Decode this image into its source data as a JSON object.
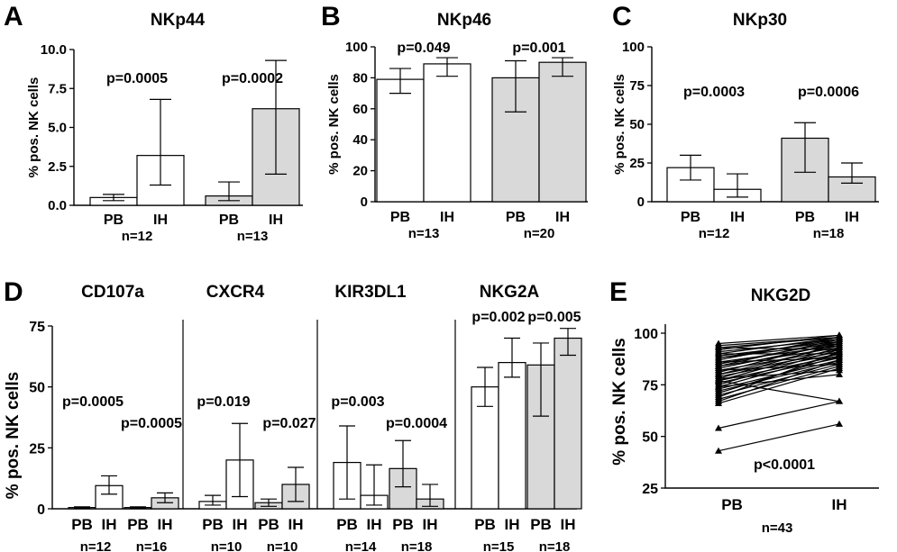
{
  "colors": {
    "white_bar": "#ffffff",
    "grey_bar": "#d9d9d9",
    "ink": "#000000"
  },
  "chart_data": [
    {
      "panel": "A",
      "type": "bar",
      "title": "NKp44",
      "ylabel": "% pos. NK cells",
      "ylim": [
        0,
        10
      ],
      "yticks": [
        "0.0",
        "2.5",
        "5.0",
        "7.5",
        "10.0"
      ],
      "ytick_values": [
        0,
        2.5,
        5,
        7.5,
        10
      ],
      "groups": [
        {
          "n": "n=12",
          "p": "p=0.0005",
          "fill": "white",
          "bars": [
            {
              "label": "PB",
              "value": 0.5,
              "err": [
                0.3,
                0.7
              ]
            },
            {
              "label": "IH",
              "value": 3.2,
              "err": [
                1.3,
                6.8
              ]
            }
          ]
        },
        {
          "n": "n=13",
          "p": "p=0.0002",
          "fill": "grey",
          "bars": [
            {
              "label": "PB",
              "value": 0.6,
              "err": [
                0.3,
                1.5
              ]
            },
            {
              "label": "IH",
              "value": 6.2,
              "err": [
                2.0,
                9.3
              ]
            }
          ]
        }
      ]
    },
    {
      "panel": "B",
      "type": "bar",
      "title": "NKp46",
      "ylabel": "% pos. NK cells",
      "ylim": [
        0,
        100
      ],
      "yticks": [
        "0",
        "20",
        "40",
        "60",
        "80",
        "100"
      ],
      "ytick_values": [
        0,
        20,
        40,
        60,
        80,
        100
      ],
      "groups": [
        {
          "n": "n=13",
          "p": "p=0.049",
          "fill": "white",
          "bars": [
            {
              "label": "PB",
              "value": 79,
              "err": [
                70,
                86
              ]
            },
            {
              "label": "IH",
              "value": 89,
              "err": [
                81,
                93
              ]
            }
          ]
        },
        {
          "n": "n=20",
          "p": "p=0.001",
          "fill": "grey",
          "bars": [
            {
              "label": "PB",
              "value": 80,
              "err": [
                58,
                91
              ]
            },
            {
              "label": "IH",
              "value": 90,
              "err": [
                81,
                93
              ]
            }
          ]
        }
      ]
    },
    {
      "panel": "C",
      "type": "bar",
      "title": "NKp30",
      "ylabel": "% pos. NK cells",
      "ylim": [
        0,
        100
      ],
      "yticks": [
        "0",
        "25",
        "50",
        "75",
        "100"
      ],
      "ytick_values": [
        0,
        25,
        50,
        75,
        100
      ],
      "groups": [
        {
          "n": "n=12",
          "p": "p=0.0003",
          "fill": "white",
          "bars": [
            {
              "label": "PB",
              "value": 22,
              "err": [
                14,
                30
              ]
            },
            {
              "label": "IH",
              "value": 8,
              "err": [
                3,
                18
              ]
            }
          ]
        },
        {
          "n": "n=18",
          "p": "p=0.0006",
          "fill": "grey",
          "bars": [
            {
              "label": "PB",
              "value": 41,
              "err": [
                19,
                51
              ]
            },
            {
              "label": "IH",
              "value": 16,
              "err": [
                12,
                25
              ]
            }
          ]
        }
      ]
    },
    {
      "panel": "D",
      "type": "bar",
      "ylabel": "% pos. NK cells",
      "ylim": [
        0,
        75
      ],
      "yticks": [
        "0",
        "25",
        "50",
        "75"
      ],
      "ytick_values": [
        0,
        25,
        50,
        75
      ],
      "sections": [
        {
          "title": "CD107a",
          "groups": [
            {
              "n": "n=12",
              "p": "p=0.0005",
              "fill": "white",
              "bars": [
                {
                  "label": "PB",
                  "value": 0.5,
                  "err": [
                    0.3,
                    0.8
                  ]
                },
                {
                  "label": "IH",
                  "value": 9.5,
                  "err": [
                    6,
                    13.5
                  ]
                }
              ]
            },
            {
              "n": "n=16",
              "p": "p=0.0005",
              "fill": "grey",
              "bars": [
                {
                  "label": "PB",
                  "value": 0.5,
                  "err": [
                    0.3,
                    0.8
                  ]
                },
                {
                  "label": "IH",
                  "value": 4.5,
                  "err": [
                    2.5,
                    6.5
                  ]
                }
              ]
            }
          ]
        },
        {
          "title": "CXCR4",
          "groups": [
            {
              "n": "n=10",
              "p": "p=0.019",
              "fill": "white",
              "bars": [
                {
                  "label": "PB",
                  "value": 3,
                  "err": [
                    1.5,
                    5.5
                  ]
                },
                {
                  "label": "IH",
                  "value": 20,
                  "err": [
                    5,
                    35
                  ]
                }
              ]
            },
            {
              "n": "n=10",
              "p": "p=0.027",
              "fill": "grey",
              "bars": [
                {
                  "label": "PB",
                  "value": 2.5,
                  "err": [
                    1,
                    4
                  ]
                },
                {
                  "label": "IH",
                  "value": 10,
                  "err": [
                    3,
                    17
                  ]
                }
              ]
            }
          ]
        },
        {
          "title": "KIR3DL1",
          "groups": [
            {
              "n": "n=14",
              "p": "p=0.003",
              "fill": "white",
              "bars": [
                {
                  "label": "PB",
                  "value": 19,
                  "err": [
                    4,
                    34
                  ]
                },
                {
                  "label": "IH",
                  "value": 5.5,
                  "err": [
                    1.5,
                    18
                  ]
                }
              ]
            },
            {
              "n": "n=18",
              "p": "p=0.0004",
              "fill": "grey",
              "bars": [
                {
                  "label": "PB",
                  "value": 16.5,
                  "err": [
                    9,
                    28
                  ]
                },
                {
                  "label": "IH",
                  "value": 4,
                  "err": [
                    1,
                    10
                  ]
                }
              ]
            }
          ]
        },
        {
          "title": "NKG2A",
          "groups": [
            {
              "n": "n=15",
              "p": "p=0.002",
              "fill": "white",
              "bars": [
                {
                  "label": "PB",
                  "value": 50,
                  "err": [
                    42,
                    58
                  ]
                },
                {
                  "label": "IH",
                  "value": 60,
                  "err": [
                    54,
                    70
                  ]
                }
              ]
            },
            {
              "n": "n=18",
              "p": "p=0.005",
              "fill": "grey",
              "bars": [
                {
                  "label": "PB",
                  "value": 59,
                  "err": [
                    38,
                    68
                  ]
                },
                {
                  "label": "IH",
                  "value": 70,
                  "err": [
                    63,
                    74
                  ]
                }
              ]
            }
          ]
        }
      ]
    },
    {
      "panel": "E",
      "type": "line",
      "title": "NKG2D",
      "ylabel": "% pos. NK cells",
      "ylim": [
        25,
        100
      ],
      "yticks": [
        "25",
        "50",
        "75",
        "100"
      ],
      "ytick_values": [
        25,
        50,
        75,
        100
      ],
      "categories": [
        "PB",
        "IH"
      ],
      "n": "n=43",
      "p": "p<0.0001",
      "pairs": [
        [
          95,
          99
        ],
        [
          94,
          98
        ],
        [
          93,
          98
        ],
        [
          92,
          99
        ],
        [
          91,
          97
        ],
        [
          90,
          98
        ],
        [
          89,
          96
        ],
        [
          88,
          97
        ],
        [
          88,
          95
        ],
        [
          87,
          98
        ],
        [
          86,
          94
        ],
        [
          85,
          96
        ],
        [
          84,
          97
        ],
        [
          84,
          93
        ],
        [
          83,
          95
        ],
        [
          82,
          92
        ],
        [
          81,
          96
        ],
        [
          80,
          91
        ],
        [
          80,
          94
        ],
        [
          79,
          90
        ],
        [
          78,
          95
        ],
        [
          77,
          89
        ],
        [
          77,
          93
        ],
        [
          76,
          88
        ],
        [
          75,
          92
        ],
        [
          74,
          90
        ],
        [
          73,
          87
        ],
        [
          72,
          86
        ],
        [
          71,
          89
        ],
        [
          70,
          85
        ],
        [
          69,
          91
        ],
        [
          68,
          84
        ],
        [
          67,
          87
        ],
        [
          66,
          83
        ],
        [
          93,
          92
        ],
        [
          90,
          90
        ],
        [
          86,
          88
        ],
        [
          82,
          85
        ],
        [
          78,
          82
        ],
        [
          74,
          80
        ],
        [
          77,
          67
        ],
        [
          54,
          67
        ],
        [
          43,
          56
        ]
      ]
    }
  ]
}
